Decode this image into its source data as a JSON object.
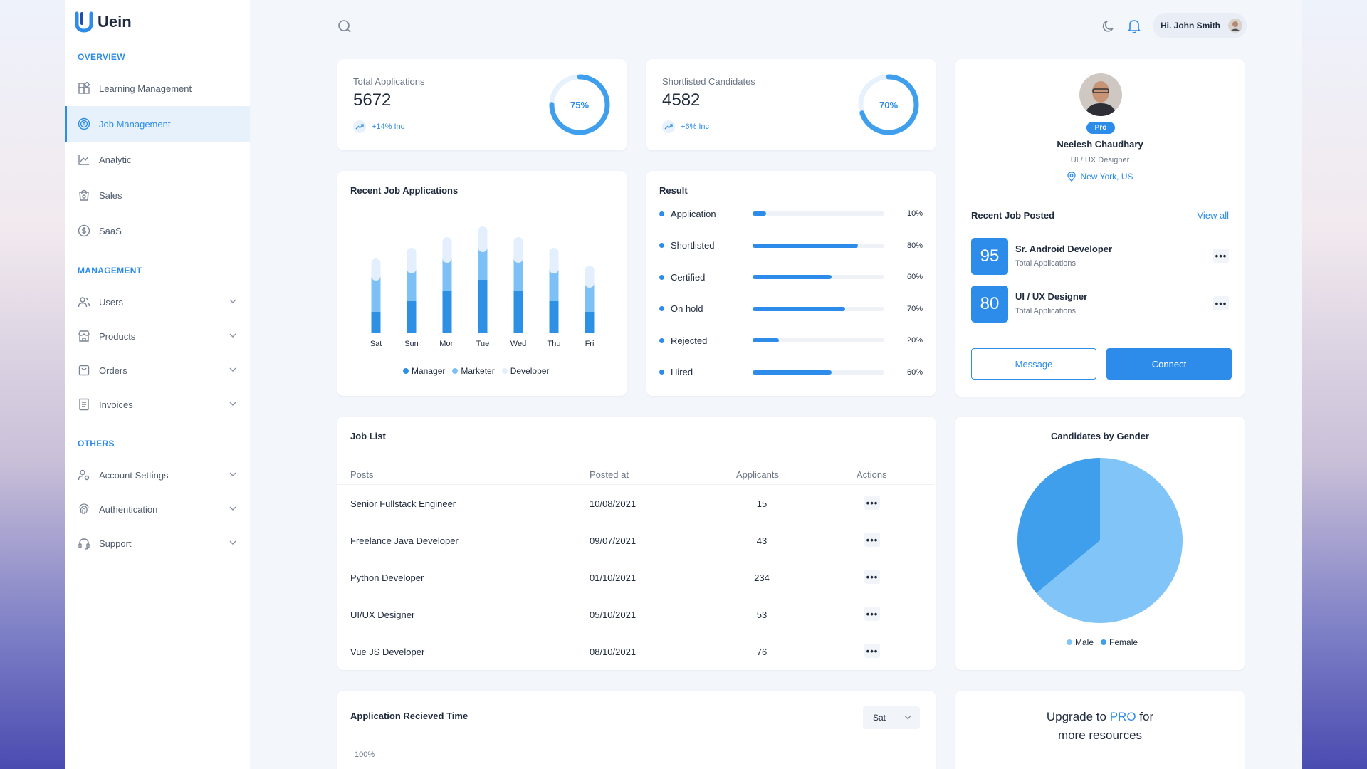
{
  "brand": {
    "name": "Uein"
  },
  "sidebar": {
    "overview_title": "OVERVIEW",
    "overview_items": [
      {
        "label": "Learning Management",
        "icon": "grid-icon"
      },
      {
        "label": "Job Management",
        "icon": "target-icon",
        "active": true
      },
      {
        "label": "Analytic",
        "icon": "chart-icon"
      },
      {
        "label": "Sales",
        "icon": "shopping-bag-icon"
      },
      {
        "label": "SaaS",
        "icon": "dollar-icon"
      }
    ],
    "management_title": "MANAGEMENT",
    "management_items": [
      {
        "label": "Users",
        "icon": "users-icon"
      },
      {
        "label": "Products",
        "icon": "store-icon"
      },
      {
        "label": "Orders",
        "icon": "bag-icon"
      },
      {
        "label": "Invoices",
        "icon": "invoice-icon"
      }
    ],
    "others_title": "OTHERS",
    "others_items": [
      {
        "label": "Account Settings",
        "icon": "user-settings-icon"
      },
      {
        "label": "Authentication",
        "icon": "fingerprint-icon"
      },
      {
        "label": "Support",
        "icon": "headset-icon"
      }
    ]
  },
  "topbar": {
    "greeting": "Hi. John Smith"
  },
  "stats": [
    {
      "label": "Total Applications",
      "value": "5672",
      "change": "+14% Inc",
      "ring_pct": 75,
      "ring_label": "75%"
    },
    {
      "label": "Shortlisted Candidates",
      "value": "4582",
      "change": "+6% Inc",
      "ring_pct": 70,
      "ring_label": "70%"
    }
  ],
  "profile": {
    "badge": "Pro",
    "name": "Neelesh Chaudhary",
    "role": "UI / UX Designer",
    "location": "New York, US",
    "recent_title": "Recent Job Posted",
    "view_all": "View all",
    "jobs": [
      {
        "count": "95",
        "title": "Sr. Android Developer",
        "sub": "Total Applications"
      },
      {
        "count": "80",
        "title": "UI / UX Designer",
        "sub": "Total Applications"
      }
    ],
    "message_label": "Message",
    "connect_label": "Connect"
  },
  "chart_data": [
    {
      "type": "bar",
      "title": "Recent Job Applications",
      "categories": [
        "Sat",
        "Sun",
        "Mon",
        "Tue",
        "Wed",
        "Thu",
        "Fri"
      ],
      "series": [
        {
          "name": "Manager",
          "values": [
            30,
            45,
            60,
            75,
            60,
            45,
            30
          ],
          "color": "#2e90e5"
        },
        {
          "name": "Marketer",
          "values": [
            50,
            45,
            45,
            45,
            45,
            45,
            40
          ],
          "color": "#7cc0f5"
        },
        {
          "name": "Developer",
          "values": [
            25,
            30,
            30,
            30,
            30,
            30,
            25
          ],
          "color": "#e3effc"
        }
      ],
      "stacked": true,
      "legend": "bottom"
    },
    {
      "type": "bar",
      "title": "Result",
      "orientation": "horizontal",
      "categories": [
        "Application",
        "Shortlisted",
        "Certified",
        "On hold",
        "Rejected",
        "Hired"
      ],
      "values": [
        10,
        80,
        60,
        70,
        20,
        60
      ],
      "labels": [
        "10%",
        "80%",
        "60%",
        "70%",
        "20%",
        "60%"
      ],
      "xlim": [
        0,
        100
      ]
    },
    {
      "type": "pie",
      "title": "Candidates by Gender",
      "labels": [
        "Male",
        "Female"
      ],
      "values": [
        64,
        36
      ],
      "colors": [
        "#80c4f8",
        "#3f9fec"
      ],
      "legend": "bottom"
    }
  ],
  "job_list": {
    "title": "Job List",
    "columns": [
      "Posts",
      "Posted at",
      "Applicants",
      "Actions"
    ],
    "rows": [
      {
        "post": "Senior Fullstack Engineer",
        "date": "10/08/2021",
        "applicants": "15"
      },
      {
        "post": "Freelance Java Developer",
        "date": "09/07/2021",
        "applicants": "43"
      },
      {
        "post": "Python Developer",
        "date": "01/10/2021",
        "applicants": "234"
      },
      {
        "post": "UI/UX Designer",
        "date": "05/10/2021",
        "applicants": "53"
      },
      {
        "post": "Vue JS Developer",
        "date": "08/10/2021",
        "applicants": "76"
      }
    ]
  },
  "app_time": {
    "title": "Application Recieved Time",
    "select": "Sat",
    "y_top": "100%"
  },
  "upgrade": {
    "line1_a": "Upgrade to ",
    "line1_b": "PRO",
    "line1_c": " for",
    "line2": "more resources"
  }
}
